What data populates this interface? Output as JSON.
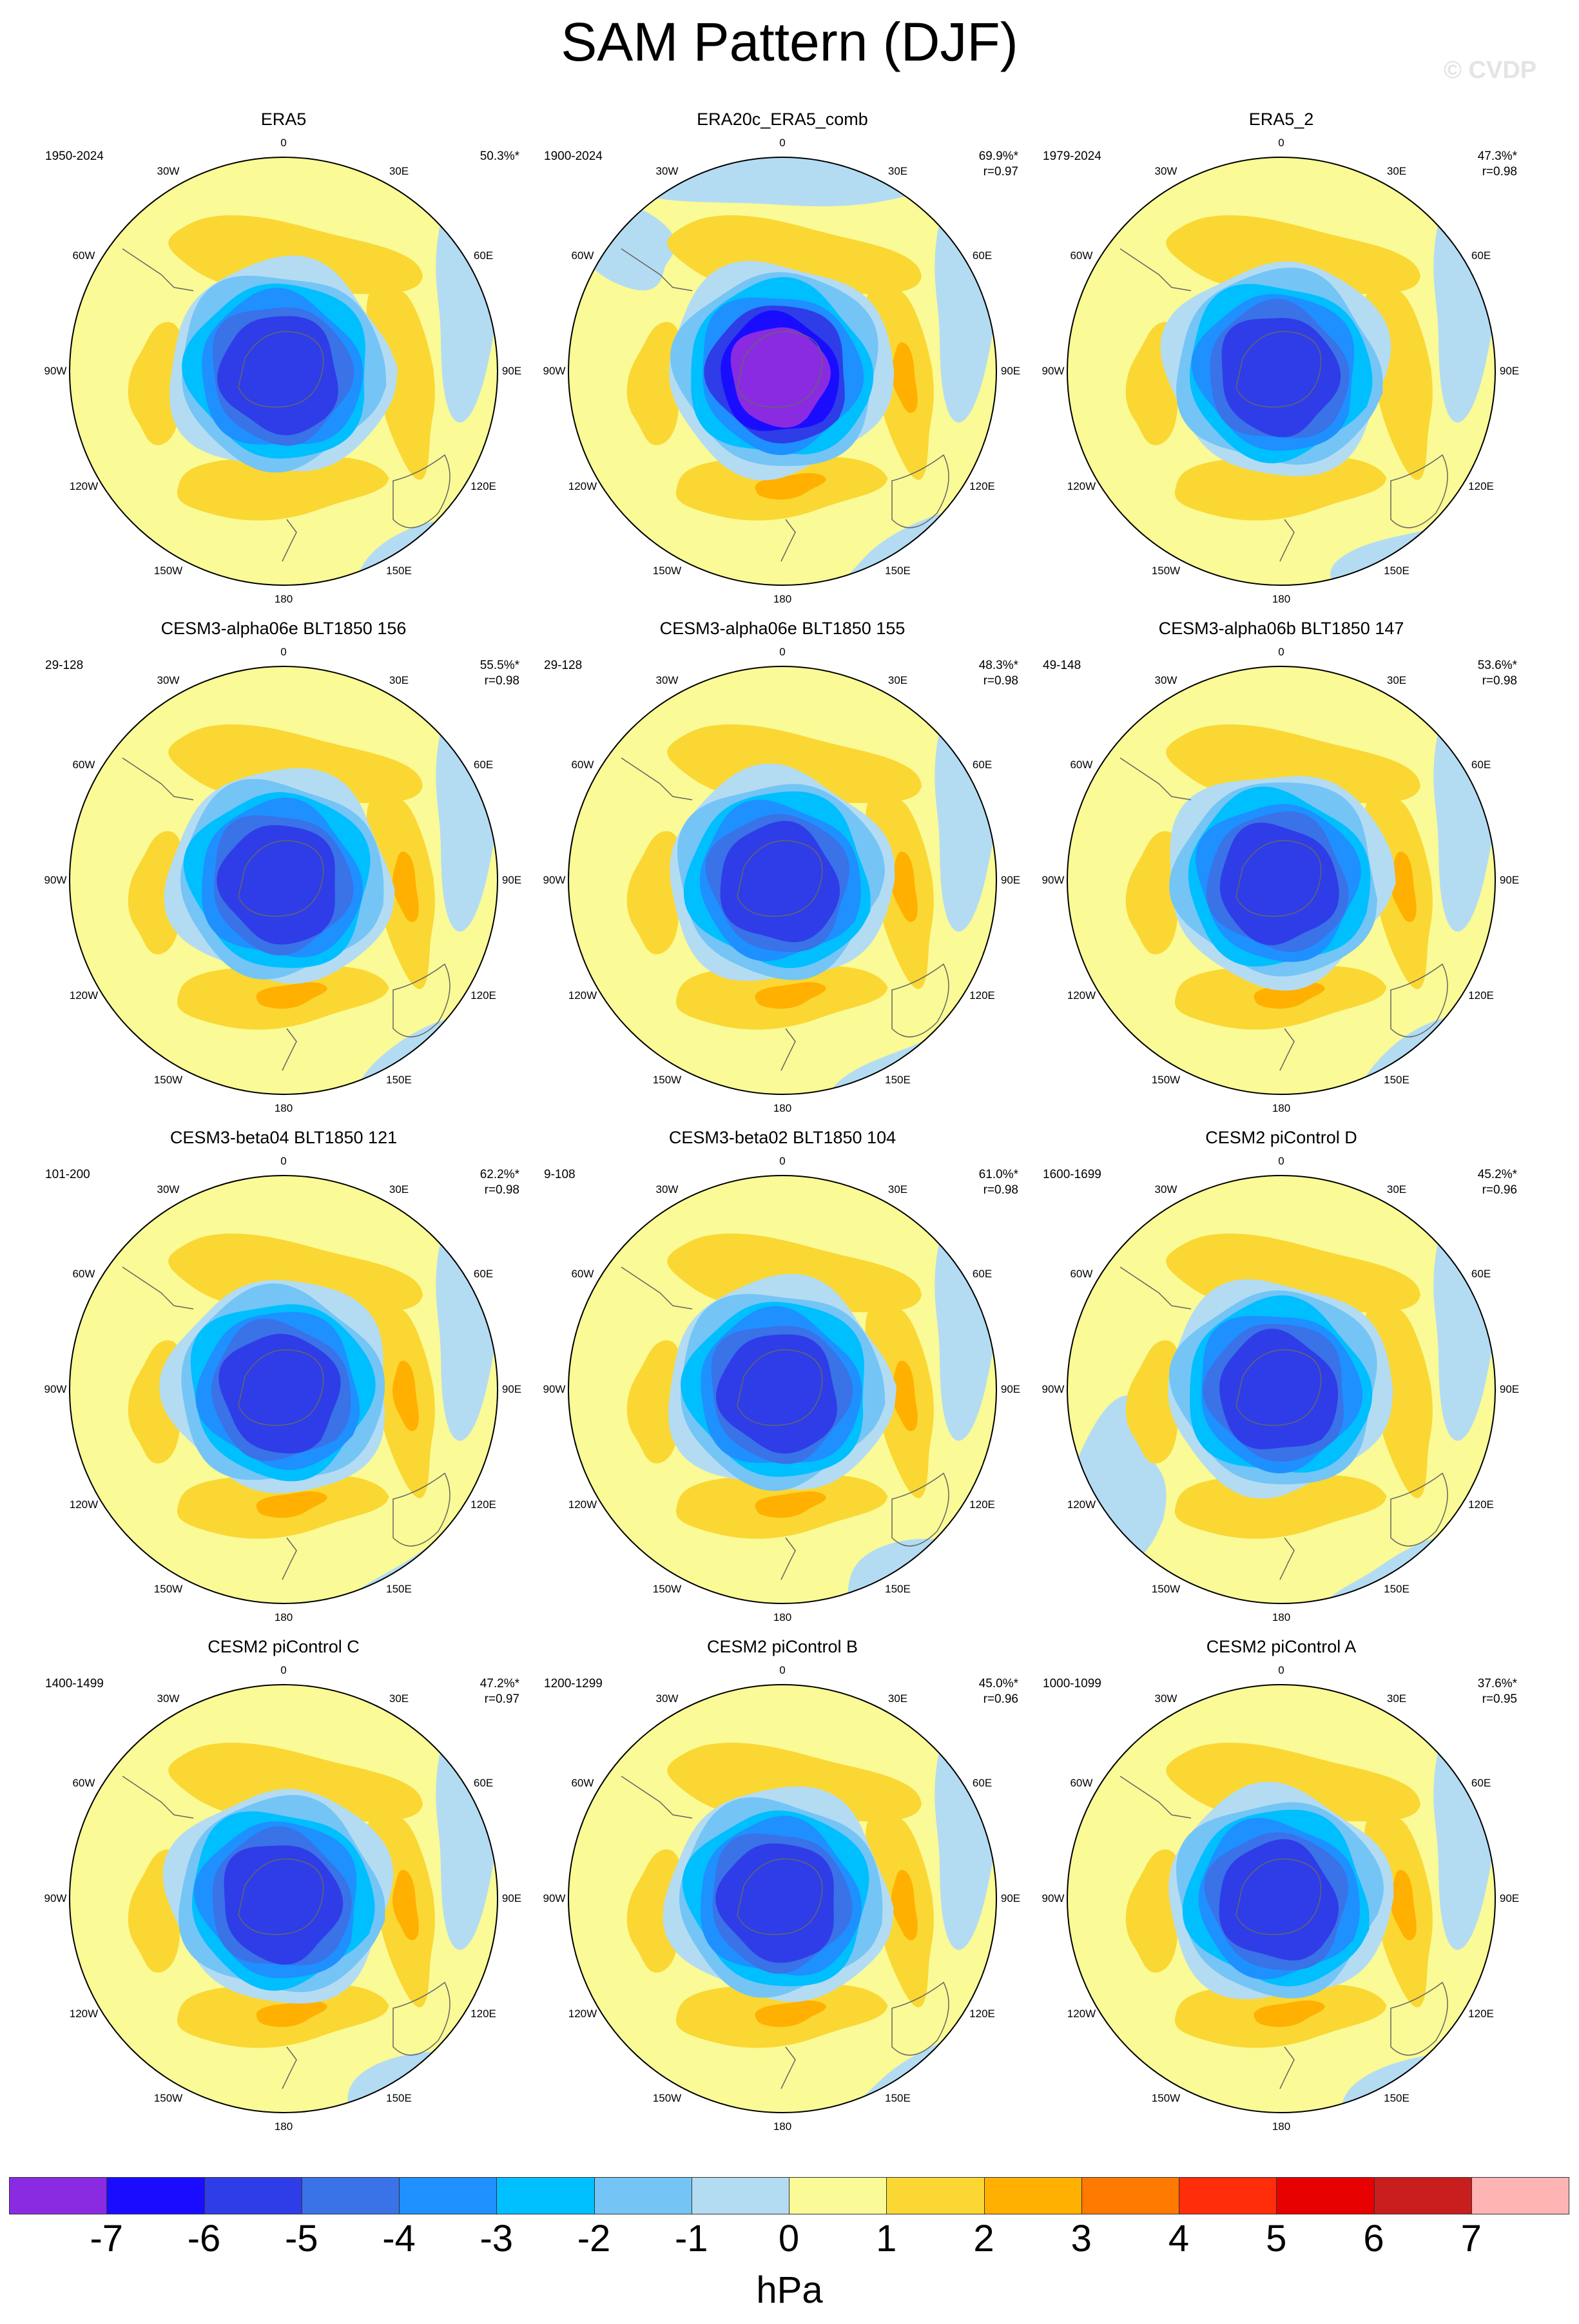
{
  "title": "SAM Pattern (DJF)",
  "watermark": "© CVDP",
  "units": "hPa",
  "lon_labels": [
    "0",
    "30E",
    "60E",
    "90E",
    "120E",
    "150E",
    "180",
    "150W",
    "120W",
    "90W",
    "60W",
    "30W"
  ],
  "colorbar": {
    "labels": [
      "-7",
      "-6",
      "-5",
      "-4",
      "-3",
      "-2",
      "-1",
      "0",
      "1",
      "2",
      "3",
      "4",
      "5",
      "6",
      "7"
    ],
    "colors": [
      "#8a2be2",
      "#1a0dff",
      "#2e3de8",
      "#3a72e8",
      "#1e90ff",
      "#00bfff",
      "#74c5f5",
      "#b3dcf3",
      "#fafa96",
      "#fad733",
      "#ffb000",
      "#ff7a00",
      "#ff2d0a",
      "#e60000",
      "#c81e1e",
      "#ffb4b4"
    ]
  },
  "chart_data": [
    {
      "type": "heatmap",
      "title": "ERA5",
      "period": "1950-2024",
      "pct": "50.3%*",
      "r": "",
      "min_hPa": -4.6,
      "ring": [
        "#1e90ff",
        "#3a72e8",
        "#2e3de8"
      ],
      "pos_max": 1.8
    },
    {
      "type": "heatmap",
      "title": "ERA20c_ERA5_comb",
      "period": "1900-2024",
      "pct": "69.9%*",
      "r": "r=0.97",
      "min_hPa": -7.2,
      "ring": [
        "#1e90ff",
        "#2e3de8",
        "#1a0dff",
        "#8a2be2"
      ],
      "pos_max": 2.4
    },
    {
      "type": "heatmap",
      "title": "ERA5_2",
      "period": "1979-2024",
      "pct": "47.3%*",
      "r": "r=0.98",
      "min_hPa": -4.4,
      "ring": [
        "#1e90ff",
        "#3a72e8",
        "#2e3de8"
      ],
      "pos_max": 1.6
    },
    {
      "type": "heatmap",
      "title": "CESM3-alpha06e BLT1850 156",
      "period": "29-128",
      "pct": "55.5%*",
      "r": "r=0.98",
      "min_hPa": -5.3,
      "ring": [
        "#1e90ff",
        "#3a72e8",
        "#2e3de8"
      ],
      "pos_max": 2.6
    },
    {
      "type": "heatmap",
      "title": "CESM3-alpha06e BLT1850 155",
      "period": "29-128",
      "pct": "48.3%*",
      "r": "r=0.98",
      "min_hPa": -4.8,
      "ring": [
        "#1e90ff",
        "#3a72e8",
        "#2e3de8"
      ],
      "pos_max": 2.3
    },
    {
      "type": "heatmap",
      "title": "CESM3-alpha06b BLT1850 147",
      "period": "49-148",
      "pct": "53.6%*",
      "r": "r=0.98",
      "min_hPa": -5.1,
      "ring": [
        "#1e90ff",
        "#3a72e8",
        "#2e3de8"
      ],
      "pos_max": 2.7
    },
    {
      "type": "heatmap",
      "title": "CESM3-beta04 BLT1850 121",
      "period": "101-200",
      "pct": "62.2%*",
      "r": "r=0.98",
      "min_hPa": -5.7,
      "ring": [
        "#1e90ff",
        "#3a72e8",
        "#2e3de8"
      ],
      "pos_max": 2.8
    },
    {
      "type": "heatmap",
      "title": "CESM3-beta02 BLT1850 104",
      "period": "9-108",
      "pct": "61.0%*",
      "r": "r=0.98",
      "min_hPa": -5.5,
      "ring": [
        "#1e90ff",
        "#3a72e8",
        "#2e3de8"
      ],
      "pos_max": 2.7
    },
    {
      "type": "heatmap",
      "title": "CESM2 piControl D",
      "period": "1600-1699",
      "pct": "45.2%*",
      "r": "r=0.96",
      "min_hPa": -4.4,
      "ring": [
        "#1e90ff",
        "#3a72e8",
        "#2e3de8"
      ],
      "pos_max": 1.7
    },
    {
      "type": "heatmap",
      "title": "CESM2 piControl C",
      "period": "1400-1499",
      "pct": "47.2%*",
      "r": "r=0.97",
      "min_hPa": -4.7,
      "ring": [
        "#1e90ff",
        "#3a72e8",
        "#2e3de8"
      ],
      "pos_max": 2.2
    },
    {
      "type": "heatmap",
      "title": "CESM2 piControl B",
      "period": "1200-1299",
      "pct": "45.0%*",
      "r": "r=0.96",
      "min_hPa": -4.9,
      "ring": [
        "#1e90ff",
        "#3a72e8",
        "#2e3de8"
      ],
      "pos_max": 2.4
    },
    {
      "type": "heatmap",
      "title": "CESM2 piControl A",
      "period": "1000-1099",
      "pct": "37.6%*",
      "r": "r=0.95",
      "min_hPa": -4.4,
      "ring": [
        "#1e90ff",
        "#3a72e8",
        "#2e3de8"
      ],
      "pos_max": 2.3
    }
  ]
}
